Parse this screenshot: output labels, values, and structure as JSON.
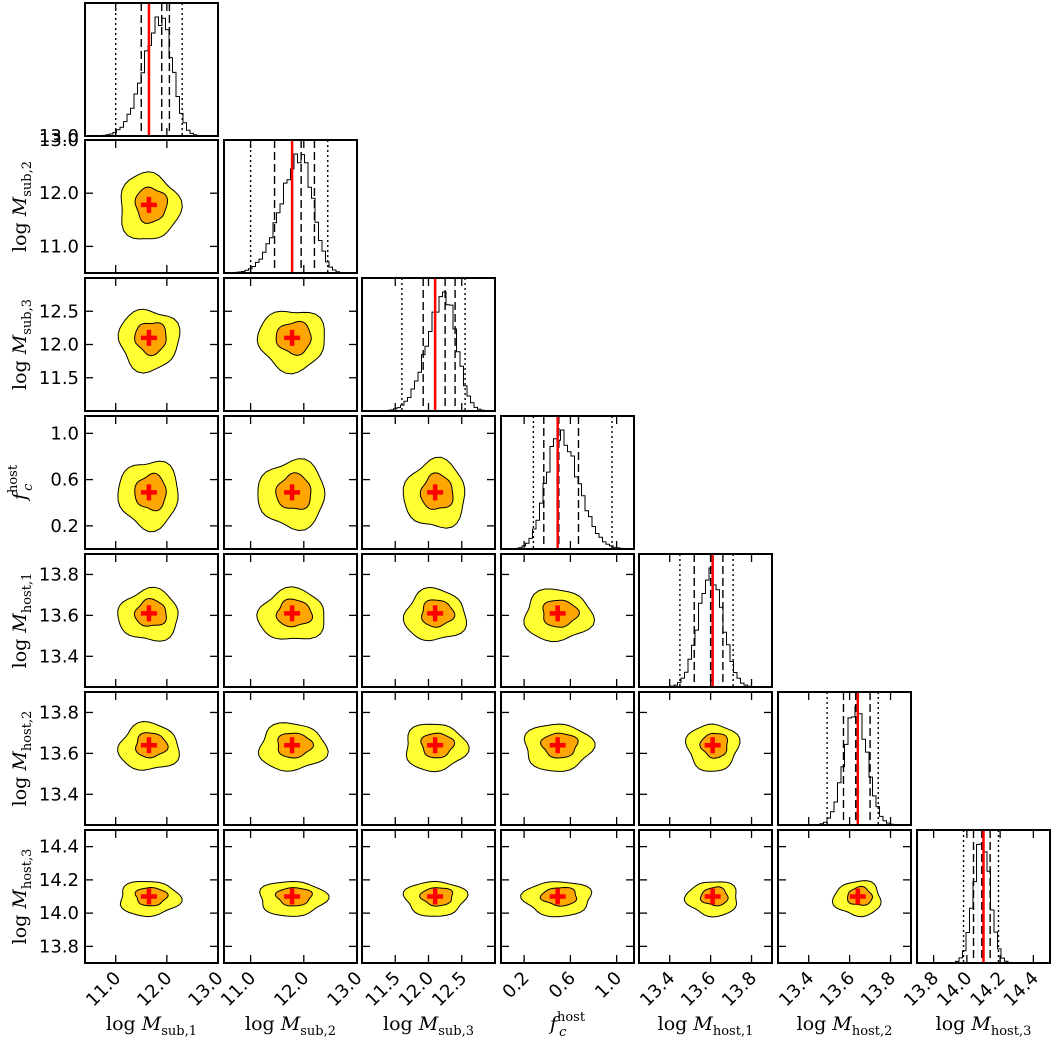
{
  "chart_data": {
    "type": "corner",
    "params": [
      {
        "sym": "M",
        "sub": "sub,1",
        "lim": [
          10.4,
          13.0
        ],
        "ticks": [
          11.0,
          12.0,
          13.0
        ],
        "tick_labels": [
          "11.0",
          "12.0",
          "13.0"
        ],
        "truth": 11.65,
        "median": 11.9,
        "sigma": 0.28,
        "skew": -0.6,
        "ci68": [
          11.5,
          12.05
        ],
        "ci95": [
          11.0,
          12.3
        ]
      },
      {
        "sym": "M",
        "sub": "sub,2",
        "lim": [
          10.5,
          13.0
        ],
        "ticks": [
          11.0,
          12.0,
          13.0
        ],
        "tick_labels": [
          "11.0",
          "12.0",
          "13.0"
        ],
        "truth": 11.78,
        "median": 11.95,
        "sigma": 0.3,
        "skew": -0.6,
        "ci68": [
          11.45,
          12.2
        ],
        "ci95": [
          11.0,
          12.45
        ]
      },
      {
        "sym": "M",
        "sub": "sub,3",
        "lim": [
          11.0,
          13.0
        ],
        "ticks": [
          11.5,
          12.0,
          12.5
        ],
        "tick_labels": [
          "11.5",
          "12.0",
          "12.5"
        ],
        "truth": 12.1,
        "median": 12.25,
        "sigma": 0.22,
        "skew": -0.5,
        "ci68": [
          11.92,
          12.4
        ],
        "ci95": [
          11.6,
          12.55
        ]
      },
      {
        "sym": "f",
        "sub": "c",
        "sup": "host",
        "lim": [
          0.0,
          1.15
        ],
        "ticks": [
          0.2,
          0.6,
          1.0
        ],
        "tick_labels": [
          "0.2",
          "0.6",
          "1.0"
        ],
        "truth": 0.49,
        "median": 0.5,
        "sigma": 0.14,
        "skew": 0.5,
        "ci68": [
          0.37,
          0.67
        ],
        "ci95": [
          0.28,
          0.96
        ]
      },
      {
        "sym": "M",
        "sub": "host,1",
        "lim": [
          13.25,
          13.9
        ],
        "ticks": [
          13.4,
          13.6,
          13.8
        ],
        "tick_labels": [
          "13.4",
          "13.6",
          "13.8"
        ],
        "truth": 13.61,
        "median": 13.6,
        "sigma": 0.06,
        "skew": 0,
        "ci68": [
          13.52,
          13.66
        ],
        "ci95": [
          13.45,
          13.71
        ]
      },
      {
        "sym": "M",
        "sub": "host,2",
        "lim": [
          13.25,
          13.9
        ],
        "ticks": [
          13.4,
          13.6,
          13.8
        ],
        "tick_labels": [
          "13.4",
          "13.6",
          "13.8"
        ],
        "truth": 13.64,
        "median": 13.63,
        "sigma": 0.055,
        "skew": 0,
        "ci68": [
          13.57,
          13.7
        ],
        "ci95": [
          13.49,
          13.74
        ]
      },
      {
        "sym": "M",
        "sub": "host,3",
        "lim": [
          13.7,
          14.5
        ],
        "ticks": [
          13.8,
          14.0,
          14.2,
          14.4
        ],
        "tick_labels": [
          "13.8",
          "14.0",
          "14.2",
          "14.4"
        ],
        "truth": 14.1,
        "median": 14.09,
        "sigma": 0.05,
        "skew": 0,
        "ci68": [
          14.04,
          14.14
        ],
        "ci95": [
          13.98,
          14.19
        ]
      }
    ],
    "y_left_ticks": {
      "1": {
        "ticks": [
          11.0,
          12.0,
          13.0
        ],
        "labels": [
          "11.0",
          "12.0",
          "13.0"
        ]
      },
      "2": {
        "ticks": [
          11.5,
          12.0,
          12.5
        ],
        "labels": [
          "11.5",
          "12.0",
          "12.5"
        ]
      },
      "3": {
        "ticks": [
          0.2,
          0.6,
          1.0
        ],
        "labels": [
          "0.2",
          "0.6",
          "1.0"
        ]
      },
      "4": {
        "ticks": [
          13.4,
          13.6,
          13.8
        ],
        "labels": [
          "13.4",
          "13.6",
          "13.8"
        ]
      },
      "5": {
        "ticks": [
          13.4,
          13.6,
          13.8
        ],
        "labels": [
          "13.4",
          "13.6",
          "13.8"
        ]
      },
      "6": {
        "ticks": [
          13.8,
          14.0,
          14.2,
          14.4
        ],
        "labels": [
          "13.8",
          "14.0",
          "14.2",
          "14.4"
        ]
      }
    },
    "hist_top_tick_label": "13.0",
    "colors": {
      "inner": "#ffa500",
      "outer": "#ffff33",
      "truth": "#ff0000",
      "line": "#000000"
    }
  }
}
